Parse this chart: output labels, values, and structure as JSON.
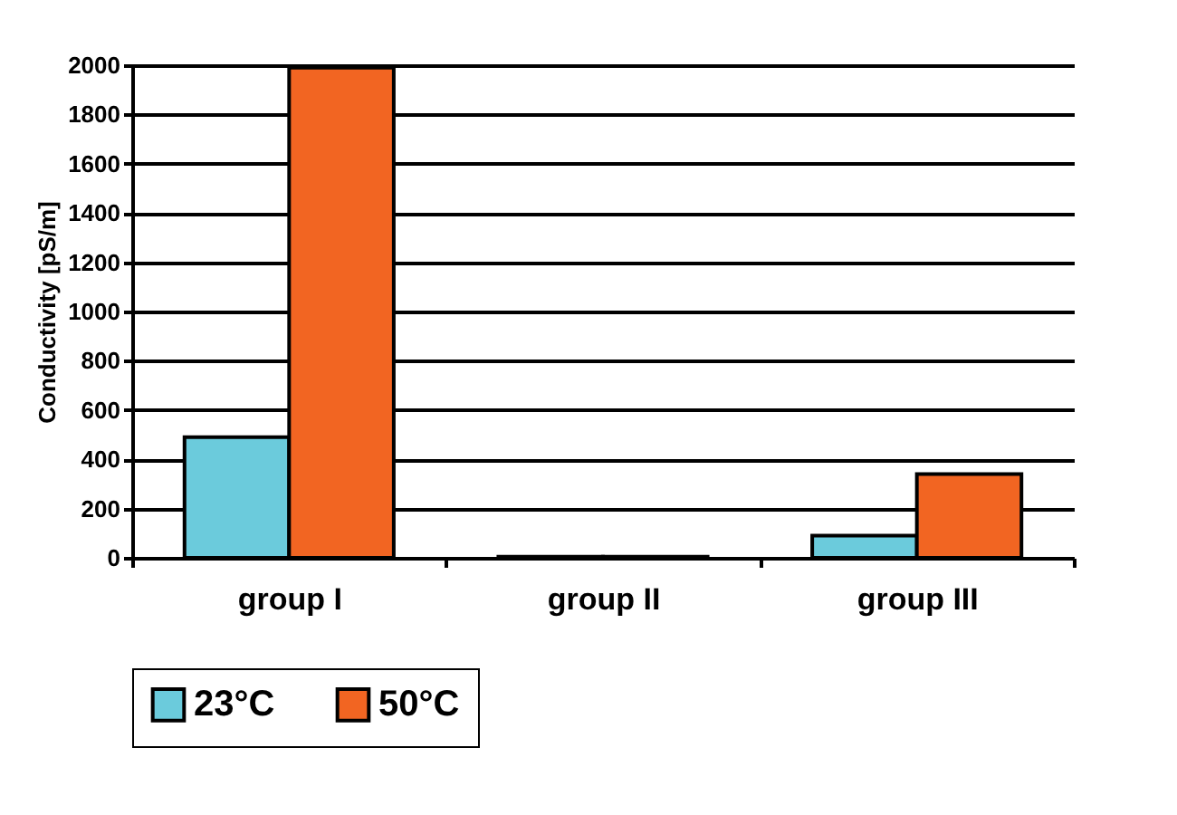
{
  "chart_data": {
    "type": "bar",
    "ylabel": "Conductivity [pS/m]",
    "categories": [
      "group I",
      "group II",
      "group III"
    ],
    "series": [
      {
        "name": "23°C",
        "color": "#6bcbdc",
        "values": [
          490,
          5,
          90
        ]
      },
      {
        "name": "50°C",
        "color": "#f26522",
        "values": [
          1990,
          5,
          340
        ]
      }
    ],
    "ylim": [
      0,
      2000
    ],
    "yticks": [
      0,
      200,
      400,
      600,
      800,
      1000,
      1200,
      1400,
      1600,
      1800,
      2000
    ],
    "grid": "y",
    "legend": "bottom"
  }
}
